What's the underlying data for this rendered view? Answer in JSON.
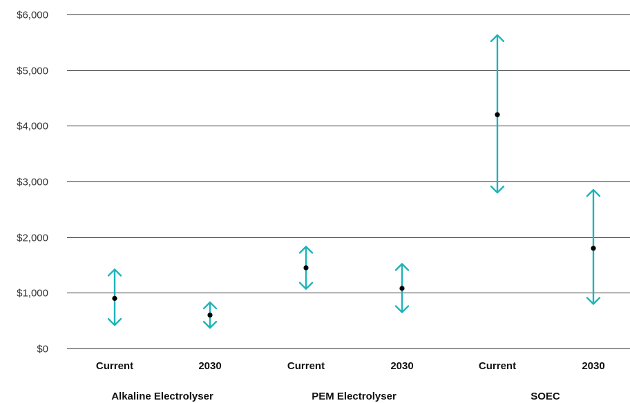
{
  "chart_data": {
    "type": "range",
    "ylim": [
      0,
      6000
    ],
    "yticks": [
      0,
      1000,
      2000,
      3000,
      4000,
      5000,
      6000
    ],
    "ytick_labels": [
      "$0",
      "$1,000",
      "$2,000",
      "$3,000",
      "$4,000",
      "$5,000",
      "$6,000"
    ],
    "categories": [
      "Current",
      "2030",
      "Current",
      "2030",
      "Current",
      "2030"
    ],
    "groups": [
      {
        "label": "Alkaline Electrolyser",
        "span": [
          0,
          1
        ]
      },
      {
        "label": "PEM Electrolyser",
        "span": [
          2,
          3
        ]
      },
      {
        "label": "SOEC",
        "span": [
          4,
          5
        ]
      }
    ],
    "points": [
      {
        "category": "Current",
        "group": "Alkaline Electrolyser",
        "low": 420,
        "high": 1420,
        "mid": 900
      },
      {
        "category": "2030",
        "group": "Alkaline Electrolyser",
        "low": 370,
        "high": 830,
        "mid": 600
      },
      {
        "category": "Current",
        "group": "PEM Electrolyser",
        "low": 1070,
        "high": 1830,
        "mid": 1450
      },
      {
        "category": "2030",
        "group": "PEM Electrolyser",
        "low": 650,
        "high": 1520,
        "mid": 1080
      },
      {
        "category": "Current",
        "group": "SOEC",
        "low": 2800,
        "high": 5630,
        "mid": 4200
      },
      {
        "category": "2030",
        "group": "SOEC",
        "low": 800,
        "high": 2850,
        "mid": 1800
      }
    ],
    "colors": {
      "range": "#1db3b8",
      "marker": "#000000",
      "grid": "#333333"
    },
    "grid": true,
    "title": "",
    "xlabel": "",
    "ylabel": ""
  }
}
